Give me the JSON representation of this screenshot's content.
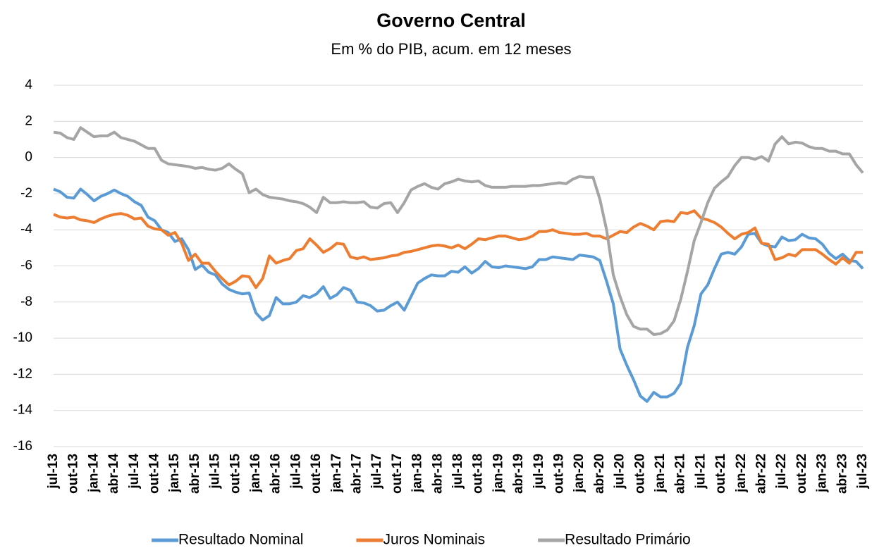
{
  "chart_data": {
    "type": "line",
    "title": "Governo Central",
    "subtitle": "Em % do PIB, acum. em 12 meses",
    "categories": [
      "jul-13",
      null,
      null,
      "out-13",
      null,
      null,
      "jan-14",
      null,
      null,
      "abr-14",
      null,
      null,
      "jul-14",
      null,
      null,
      "out-14",
      null,
      null,
      "jan-15",
      null,
      null,
      "abr-15",
      null,
      null,
      "jul-15",
      null,
      null,
      "out-15",
      null,
      null,
      "jan-16",
      null,
      null,
      "abr-16",
      null,
      null,
      "jul-16",
      null,
      null,
      "out-16",
      null,
      null,
      "jan-17",
      null,
      null,
      "abr-17",
      null,
      null,
      "jul-17",
      null,
      null,
      "out-17",
      null,
      null,
      "jan-18",
      null,
      null,
      "abr-18",
      null,
      null,
      "jul-18",
      null,
      null,
      "out-18",
      null,
      null,
      "jan-19",
      null,
      null,
      "abr-19",
      null,
      null,
      "jul-19",
      null,
      null,
      "out-19",
      null,
      null,
      "jan-20",
      null,
      null,
      "abr-20",
      null,
      null,
      "jul-20",
      null,
      null,
      "out-20",
      null,
      null,
      "jan-21",
      null,
      null,
      "abr-21",
      null,
      null,
      "jul-21",
      null,
      null,
      "out-21",
      null,
      null,
      "jan-22",
      null,
      null,
      "abr-22",
      null,
      null,
      "jul-22",
      null,
      null,
      "out-22",
      null,
      null,
      "jan-23",
      null,
      null,
      "abr-23",
      null,
      null,
      "jul-23"
    ],
    "series": [
      {
        "name": "Resultado Nominal",
        "color": "#5b9bd5",
        "values": [
          -1.75,
          -1.9,
          -2.2,
          -2.25,
          -1.75,
          -2.05,
          -2.4,
          -2.15,
          -2.0,
          -1.8,
          -2.0,
          -2.15,
          -2.45,
          -2.65,
          -3.3,
          -3.5,
          -4.0,
          -4.15,
          -4.65,
          -4.5,
          -5.1,
          -6.2,
          -5.95,
          -6.35,
          -6.5,
          -7.0,
          -7.3,
          -7.45,
          -7.55,
          -7.5,
          -8.6,
          -9.0,
          -8.75,
          -7.75,
          -8.1,
          -8.1,
          -8.0,
          -7.65,
          -7.75,
          -7.55,
          -7.15,
          -7.8,
          -7.6,
          -7.2,
          -7.35,
          -8.0,
          -8.05,
          -8.2,
          -8.5,
          -8.45,
          -8.2,
          -8.0,
          -8.45,
          -7.7,
          -6.95,
          -6.7,
          -6.5,
          -6.55,
          -6.55,
          -6.3,
          -6.35,
          -6.05,
          -6.4,
          -6.15,
          -5.75,
          -6.05,
          -6.1,
          -6.0,
          -6.05,
          -6.1,
          -6.15,
          -6.05,
          -5.65,
          -5.65,
          -5.5,
          -5.55,
          -5.6,
          -5.65,
          -5.4,
          -5.45,
          -5.5,
          -5.7,
          -6.85,
          -8.1,
          -10.6,
          -11.5,
          -12.3,
          -13.2,
          -13.5,
          -13.0,
          -13.25,
          -13.25,
          -13.05,
          -12.5,
          -10.5,
          -9.3,
          -7.55,
          -7.05,
          -6.15,
          -5.35,
          -5.25,
          -5.35,
          -4.95,
          -4.25,
          -4.2,
          -4.75,
          -4.9,
          -4.95,
          -4.4,
          -4.6,
          -4.55,
          -4.25,
          -4.45,
          -4.5,
          -4.8,
          -5.3,
          -5.6,
          -5.35,
          -5.7,
          -5.75,
          -6.15
        ]
      },
      {
        "name": "Juros Nominais",
        "color": "#ed7d31",
        "values": [
          -3.15,
          -3.3,
          -3.35,
          -3.3,
          -3.45,
          -3.5,
          -3.6,
          -3.4,
          -3.25,
          -3.15,
          -3.1,
          -3.2,
          -3.4,
          -3.35,
          -3.8,
          -3.95,
          -4.0,
          -4.3,
          -4.15,
          -4.75,
          -5.7,
          -5.35,
          -5.85,
          -5.85,
          -6.3,
          -6.7,
          -7.05,
          -6.85,
          -6.55,
          -6.6,
          -7.2,
          -6.7,
          -5.45,
          -5.85,
          -5.7,
          -5.6,
          -5.15,
          -5.05,
          -4.5,
          -4.85,
          -5.25,
          -5.05,
          -4.75,
          -4.8,
          -5.5,
          -5.6,
          -5.5,
          -5.65,
          -5.6,
          -5.55,
          -5.45,
          -5.4,
          -5.25,
          -5.2,
          -5.1,
          -5.0,
          -4.9,
          -4.85,
          -4.9,
          -5.0,
          -4.85,
          -5.05,
          -4.8,
          -4.5,
          -4.55,
          -4.45,
          -4.35,
          -4.35,
          -4.45,
          -4.55,
          -4.5,
          -4.35,
          -4.1,
          -4.1,
          -4.0,
          -4.15,
          -4.2,
          -4.25,
          -4.25,
          -4.2,
          -4.35,
          -4.35,
          -4.5,
          -4.3,
          -4.1,
          -4.15,
          -3.85,
          -3.65,
          -3.8,
          -4.0,
          -3.55,
          -3.5,
          -3.55,
          -3.05,
          -3.1,
          -2.95,
          -3.35,
          -3.45,
          -3.6,
          -3.85,
          -4.2,
          -4.5,
          -4.25,
          -4.15,
          -3.9,
          -4.75,
          -4.8,
          -5.65,
          -5.55,
          -5.35,
          -5.45,
          -5.1,
          -5.1,
          -5.1,
          -5.35,
          -5.65,
          -5.9,
          -5.55,
          -5.85,
          -5.25,
          -5.25
        ]
      },
      {
        "name": "Resultado Primário",
        "color": "#a5a5a5",
        "values": [
          1.4,
          1.35,
          1.1,
          1.0,
          1.65,
          1.4,
          1.15,
          1.2,
          1.2,
          1.4,
          1.1,
          1.0,
          0.9,
          0.7,
          0.5,
          0.5,
          -0.15,
          -0.35,
          -0.4,
          -0.45,
          -0.5,
          -0.6,
          -0.55,
          -0.65,
          -0.7,
          -0.6,
          -0.35,
          -0.65,
          -0.9,
          -1.95,
          -1.75,
          -2.05,
          -2.2,
          -2.25,
          -2.3,
          -2.4,
          -2.45,
          -2.55,
          -2.75,
          -3.05,
          -2.2,
          -2.5,
          -2.5,
          -2.45,
          -2.5,
          -2.5,
          -2.45,
          -2.75,
          -2.8,
          -2.55,
          -2.5,
          -3.05,
          -2.5,
          -1.8,
          -1.6,
          -1.45,
          -1.65,
          -1.75,
          -1.45,
          -1.35,
          -1.2,
          -1.3,
          -1.35,
          -1.3,
          -1.55,
          -1.65,
          -1.65,
          -1.65,
          -1.6,
          -1.6,
          -1.6,
          -1.55,
          -1.55,
          -1.5,
          -1.45,
          -1.4,
          -1.45,
          -1.2,
          -1.05,
          -1.1,
          -1.1,
          -2.3,
          -4.0,
          -6.5,
          -7.7,
          -8.7,
          -9.35,
          -9.5,
          -9.5,
          -9.8,
          -9.75,
          -9.55,
          -9.05,
          -7.85,
          -6.3,
          -4.6,
          -3.6,
          -2.5,
          -1.7,
          -1.35,
          -1.05,
          -0.45,
          0.0,
          0.0,
          -0.1,
          0.05,
          -0.2,
          0.75,
          1.15,
          0.75,
          0.85,
          0.8,
          0.6,
          0.5,
          0.5,
          0.35,
          0.35,
          0.2,
          0.2,
          -0.4,
          -0.85
        ]
      }
    ],
    "ylim": [
      -16,
      4
    ],
    "yticks": [
      4,
      2,
      0,
      -2,
      -4,
      -6,
      -8,
      -10,
      -12,
      -14,
      -16
    ],
    "grid": true,
    "legend": "bottom"
  }
}
